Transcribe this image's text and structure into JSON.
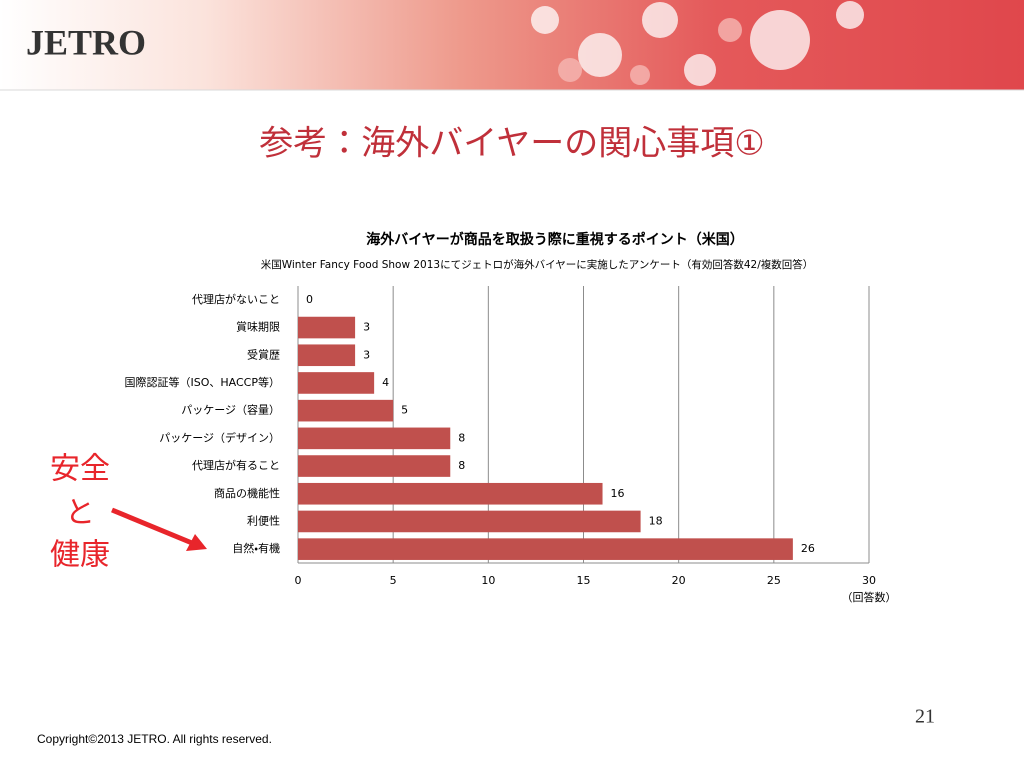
{
  "logo": "JETRO",
  "heading": "参考：海外バイヤーの関心事項①",
  "annotation": [
    "安全",
    "と",
    "健康"
  ],
  "page_number": "21",
  "copyright": "Copyright©2013 JETRO. All rights reserved.",
  "chart_data": {
    "type": "bar",
    "orientation": "horizontal",
    "title": "海外バイヤーが商品を取扱う際に重視するポイント（米国）",
    "subtitle": "米国Winter Fancy Food Show 2013にてジェトロが海外バイヤーに実施したアンケート（有効回答数42/複数回答）",
    "categories": [
      "代理店がないこと",
      "賞味期限",
      "受賞歴",
      "国際認証等（ISO、HACCP等）",
      "パッケージ（容量）",
      "パッケージ（デザイン）",
      "代理店が有ること",
      "商品の機能性",
      "利便性",
      "自然・有機"
    ],
    "values": [
      0,
      3,
      3,
      4,
      5,
      8,
      8,
      16,
      18,
      26
    ],
    "color": "#c0504d",
    "xlim": [
      0,
      30
    ],
    "xticks": [
      0,
      5,
      10,
      15,
      20,
      25,
      30
    ],
    "xlabel": "（回答数）",
    "grid": true
  }
}
